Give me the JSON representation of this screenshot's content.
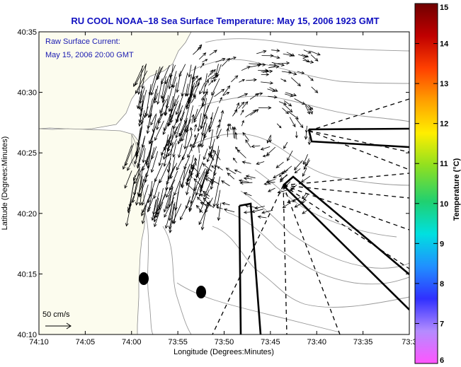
{
  "title": "RU COOL  NOAA–18  Sea Surface Temperature:  May 15, 2006 1923 GMT",
  "annotation": {
    "line1": "Raw Surface Current:",
    "line2": "May 15, 2006 20:00 GMT",
    "scale_label": "50 cm/s"
  },
  "axes": {
    "xlabel": "Longitude (Degrees:Minutes)",
    "ylabel": "Latitude (Degrees:Minutes)",
    "x_ticks": [
      "74:10",
      "74:05",
      "74:00",
      "73:55",
      "73:50",
      "73:45",
      "73:40",
      "73:35",
      "73:3"
    ],
    "y_ticks": [
      "40:10",
      "40:15",
      "40:20",
      "40:25",
      "40:30",
      "40:35"
    ]
  },
  "colorbar": {
    "label": "Temperature (°C)",
    "ticks": [
      "6",
      "7",
      "8",
      "9",
      "10",
      "11",
      "12",
      "13",
      "14",
      "15"
    ],
    "range": [
      6,
      15
    ],
    "colors": [
      "#ff55ff",
      "#b48cff",
      "#3030ff",
      "#2090ff",
      "#00e0e0",
      "#20d070",
      "#90e020",
      "#ffee00",
      "#ffa000",
      "#ff4000",
      "#c00000",
      "#700000"
    ]
  },
  "map": {
    "x_range_deg": [
      -74.1667,
      -73.55
    ],
    "y_range_deg": [
      40.1667,
      40.5833
    ],
    "land_color": "#fcfcee",
    "sea_color": "#ffffff",
    "vector_scale_cms": 50
  }
}
